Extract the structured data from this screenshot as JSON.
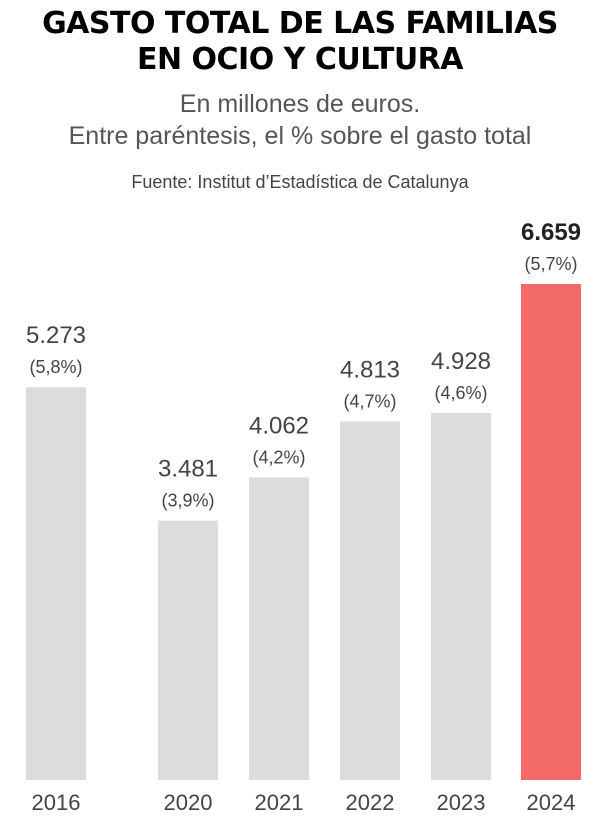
{
  "title_lines": [
    "GASTO TOTAL DE LAS FAMILIAS",
    "EN OCIO Y CULTURA"
  ],
  "subtitle_lines": [
    "En millones de euros.",
    "Entre paréntesis, el % sobre el gasto total"
  ],
  "source": "Fuente: Institut d’Estadística de Catalunya",
  "colors": {
    "bar": "#dcdcdc",
    "highlight": "#f46a6b",
    "text": "#444444"
  },
  "chart_data": {
    "type": "bar",
    "categories": [
      "2016",
      "2020",
      "2021",
      "2022",
      "2023",
      "2024"
    ],
    "values": [
      5273,
      3481,
      4062,
      4813,
      4928,
      6659
    ],
    "value_labels": [
      "5.273",
      "3.481",
      "4.062",
      "4.813",
      "4.928",
      "6.659"
    ],
    "share_labels": [
      "(5,8%)",
      "(3,9%)",
      "(4,2%)",
      "(4,7%)",
      "(4,6%)",
      "(5,7%)"
    ],
    "highlight_index": 5,
    "ylim": [
      0,
      6659
    ],
    "grid": false,
    "xlabel": "",
    "ylabel": ""
  }
}
